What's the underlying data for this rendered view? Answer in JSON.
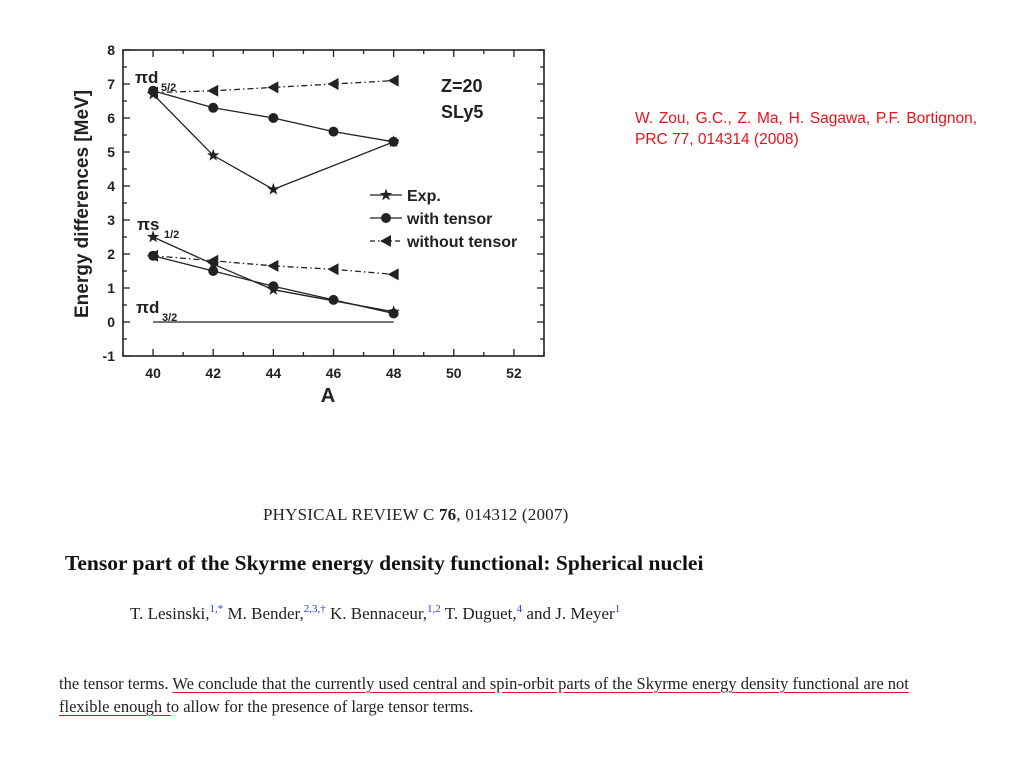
{
  "chart_data": {
    "type": "line",
    "xlabel": "A",
    "ylabel": "Energy differences [MeV]",
    "xlim": [
      39,
      53
    ],
    "ylim": [
      -1,
      8
    ],
    "xticks": [
      40,
      42,
      44,
      46,
      48,
      50,
      52
    ],
    "yticks": [
      -1,
      0,
      1,
      2,
      3,
      4,
      5,
      6,
      7,
      8
    ],
    "annotations": [
      "Z=20",
      "SLy5"
    ],
    "state_labels": [
      {
        "prefix": "πd",
        "sub": "5/2"
      },
      {
        "prefix": "πs",
        "sub": "1/2"
      },
      {
        "prefix": "πd",
        "sub": "3/2"
      }
    ],
    "legend": [
      "Exp.",
      "with tensor",
      "without tensor"
    ],
    "legend_position": "right",
    "grid": false,
    "series": [
      {
        "name": "Exp.",
        "state": "d5/2",
        "marker": "star",
        "style": "solid",
        "x": [
          40,
          42,
          44,
          48
        ],
        "y": [
          6.7,
          4.9,
          3.9,
          5.3
        ]
      },
      {
        "name": "with tensor",
        "state": "d5/2",
        "marker": "circle",
        "style": "solid",
        "x": [
          40,
          42,
          44,
          46,
          48
        ],
        "y": [
          6.8,
          6.3,
          6.0,
          5.6,
          5.3
        ]
      },
      {
        "name": "without tensor",
        "state": "d5/2",
        "marker": "triangle-left",
        "style": "dashdot",
        "x": [
          40,
          42,
          44,
          46,
          48
        ],
        "y": [
          6.75,
          6.8,
          6.9,
          7.0,
          7.1
        ]
      },
      {
        "name": "Exp.",
        "state": "s1/2",
        "marker": "star",
        "style": "solid",
        "x": [
          40,
          42,
          44,
          48
        ],
        "y": [
          2.5,
          1.7,
          0.95,
          0.3
        ]
      },
      {
        "name": "with tensor",
        "state": "s1/2",
        "marker": "circle",
        "style": "solid",
        "x": [
          40,
          42,
          44,
          46,
          48
        ],
        "y": [
          1.95,
          1.5,
          1.05,
          0.65,
          0.25
        ]
      },
      {
        "name": "without tensor",
        "state": "s1/2",
        "marker": "triangle-left",
        "style": "dashdot",
        "x": [
          40,
          42,
          44,
          46,
          48
        ],
        "y": [
          1.95,
          1.8,
          1.65,
          1.55,
          1.4
        ]
      },
      {
        "name": "",
        "state": "d3/2",
        "marker": "none",
        "style": "solid",
        "x": [
          40,
          48
        ],
        "y": [
          0,
          0
        ]
      }
    ]
  },
  "reference_note": "W. Zou, G.C., Z. Ma, H. Sagawa, P.F. Bortignon, PRC 77, 014314 (2008)",
  "paper": {
    "journal_prefix": "PHYSICAL REVIEW C ",
    "journal_volume": "76",
    "journal_suffix": ", 014312 (2007)",
    "title": "Tensor part of the Skyrme energy density functional: Spherical nuclei",
    "authors": [
      {
        "name": "T. Lesinski,",
        "sup": "1,*"
      },
      {
        "name": " M. Bender,",
        "sup": "2,3,†"
      },
      {
        "name": " K. Bennaceur,",
        "sup": "1,2"
      },
      {
        "name": " T. Duguet,",
        "sup": "4"
      },
      {
        "name": " and J. Meyer",
        "sup": "1"
      }
    ],
    "abstract_pre": "the tensor terms. ",
    "abstract_highlight": "We conclude that the currently used central and spin-orbit parts of the Skyrme energy density functional are not flexible enough t",
    "abstract_post": "o allow for the presence of large tensor terms.",
    "highlight_color": "#e8121b"
  },
  "colors": {
    "reference": "#e8121b",
    "superscript": "#2342c8",
    "chart_ink": "#222222"
  }
}
